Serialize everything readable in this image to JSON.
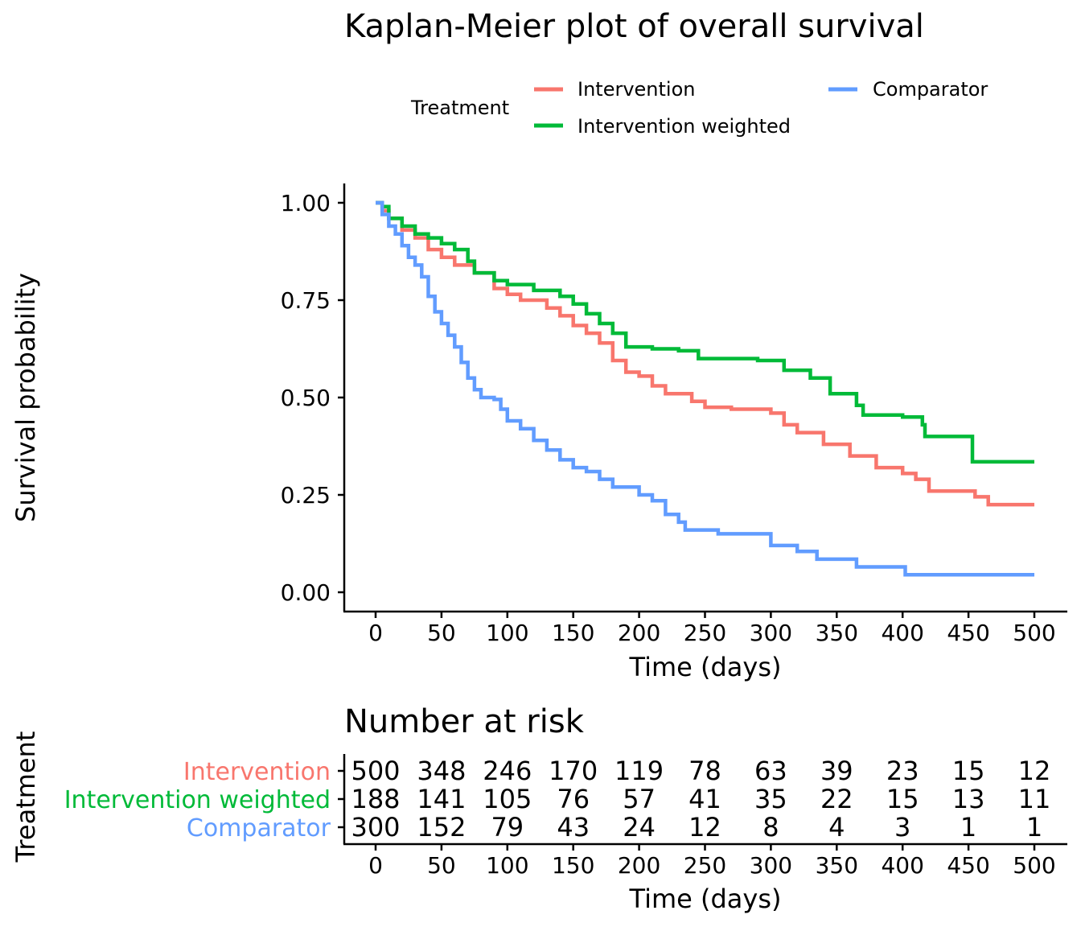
{
  "chart_data": [
    {
      "type": "line",
      "step": true,
      "title": "Kaplan-Meier plot of overall survival",
      "xlabel": "Time (days)",
      "ylabel": "Survival probability",
      "xlim": [
        0,
        500
      ],
      "ylim": [
        0,
        1
      ],
      "x_ticks": [
        "0",
        "50",
        "100",
        "150",
        "200",
        "250",
        "300",
        "350",
        "400",
        "450",
        "500"
      ],
      "y_ticks": [
        "0.00",
        "0.25",
        "0.50",
        "0.75",
        "1.00"
      ],
      "grid": false,
      "legend": {
        "title": "Treatment",
        "placement": "top",
        "entries": [
          "Intervention",
          "Intervention weighted",
          "Comparator"
        ]
      },
      "series": [
        {
          "name": "Intervention",
          "color": "#F8766D",
          "points": [
            [
              0,
              1.0
            ],
            [
              5,
              0.98
            ],
            [
              10,
              0.96
            ],
            [
              20,
              0.93
            ],
            [
              30,
              0.91
            ],
            [
              40,
              0.88
            ],
            [
              50,
              0.86
            ],
            [
              60,
              0.84
            ],
            [
              75,
              0.82
            ],
            [
              90,
              0.78
            ],
            [
              100,
              0.765
            ],
            [
              110,
              0.75
            ],
            [
              130,
              0.73
            ],
            [
              140,
              0.71
            ],
            [
              150,
              0.685
            ],
            [
              160,
              0.665
            ],
            [
              170,
              0.64
            ],
            [
              180,
              0.595
            ],
            [
              190,
              0.565
            ],
            [
              200,
              0.555
            ],
            [
              210,
              0.53
            ],
            [
              220,
              0.51
            ],
            [
              240,
              0.49
            ],
            [
              250,
              0.475
            ],
            [
              270,
              0.47
            ],
            [
              300,
              0.46
            ],
            [
              310,
              0.43
            ],
            [
              320,
              0.41
            ],
            [
              340,
              0.38
            ],
            [
              360,
              0.35
            ],
            [
              380,
              0.32
            ],
            [
              400,
              0.305
            ],
            [
              410,
              0.29
            ],
            [
              420,
              0.26
            ],
            [
              455,
              0.245
            ],
            [
              465,
              0.225
            ],
            [
              500,
              0.225
            ]
          ]
        },
        {
          "name": "Intervention weighted",
          "color": "#00BA38",
          "points": [
            [
              0,
              1.0
            ],
            [
              5,
              0.99
            ],
            [
              10,
              0.96
            ],
            [
              20,
              0.94
            ],
            [
              30,
              0.92
            ],
            [
              40,
              0.91
            ],
            [
              50,
              0.895
            ],
            [
              60,
              0.88
            ],
            [
              70,
              0.85
            ],
            [
              75,
              0.82
            ],
            [
              90,
              0.8
            ],
            [
              100,
              0.79
            ],
            [
              120,
              0.775
            ],
            [
              140,
              0.76
            ],
            [
              150,
              0.74
            ],
            [
              160,
              0.715
            ],
            [
              170,
              0.69
            ],
            [
              180,
              0.665
            ],
            [
              190,
              0.63
            ],
            [
              200,
              0.63
            ],
            [
              210,
              0.625
            ],
            [
              220,
              0.625
            ],
            [
              230,
              0.62
            ],
            [
              245,
              0.6
            ],
            [
              290,
              0.595
            ],
            [
              310,
              0.57
            ],
            [
              320,
              0.57
            ],
            [
              330,
              0.55
            ],
            [
              345,
              0.51
            ],
            [
              360,
              0.51
            ],
            [
              365,
              0.48
            ],
            [
              370,
              0.455
            ],
            [
              400,
              0.45
            ],
            [
              415,
              0.43
            ],
            [
              417,
              0.4
            ],
            [
              452,
              0.4
            ],
            [
              453,
              0.335
            ],
            [
              500,
              0.335
            ]
          ]
        },
        {
          "name": "Comparator",
          "color": "#619CFF",
          "points": [
            [
              0,
              1.0
            ],
            [
              5,
              0.97
            ],
            [
              10,
              0.94
            ],
            [
              15,
              0.92
            ],
            [
              20,
              0.89
            ],
            [
              25,
              0.86
            ],
            [
              30,
              0.84
            ],
            [
              35,
              0.81
            ],
            [
              40,
              0.76
            ],
            [
              45,
              0.72
            ],
            [
              50,
              0.69
            ],
            [
              55,
              0.66
            ],
            [
              60,
              0.63
            ],
            [
              65,
              0.59
            ],
            [
              70,
              0.55
            ],
            [
              75,
              0.52
            ],
            [
              80,
              0.5
            ],
            [
              90,
              0.495
            ],
            [
              95,
              0.47
            ],
            [
              100,
              0.44
            ],
            [
              110,
              0.42
            ],
            [
              120,
              0.39
            ],
            [
              130,
              0.365
            ],
            [
              140,
              0.34
            ],
            [
              150,
              0.32
            ],
            [
              160,
              0.31
            ],
            [
              170,
              0.29
            ],
            [
              180,
              0.27
            ],
            [
              200,
              0.25
            ],
            [
              210,
              0.235
            ],
            [
              220,
              0.2
            ],
            [
              230,
              0.18
            ],
            [
              235,
              0.16
            ],
            [
              260,
              0.15
            ],
            [
              300,
              0.12
            ],
            [
              320,
              0.105
            ],
            [
              335,
              0.085
            ],
            [
              365,
              0.065
            ],
            [
              402,
              0.045
            ],
            [
              500,
              0.045
            ]
          ]
        }
      ]
    },
    {
      "type": "table",
      "title": "Number at risk",
      "ylabel": "Treatment",
      "xlabel": "Time (days)",
      "x_ticks": [
        "0",
        "50",
        "100",
        "150",
        "200",
        "250",
        "300",
        "350",
        "400",
        "450",
        "500"
      ],
      "rows": [
        {
          "name": "Intervention",
          "color": "#F8766D",
          "values": [
            "500",
            "348",
            "246",
            "170",
            "119",
            "78",
            "63",
            "39",
            "23",
            "15",
            "12"
          ]
        },
        {
          "name": "Intervention weighted",
          "color": "#00BA38",
          "values": [
            "188",
            "141",
            "105",
            "76",
            "57",
            "41",
            "35",
            "22",
            "15",
            "13",
            "11"
          ]
        },
        {
          "name": "Comparator",
          "color": "#619CFF",
          "values": [
            "300",
            "152",
            "79",
            "43",
            "24",
            "12",
            "8",
            "4",
            "3",
            "1",
            "1"
          ]
        }
      ]
    }
  ]
}
